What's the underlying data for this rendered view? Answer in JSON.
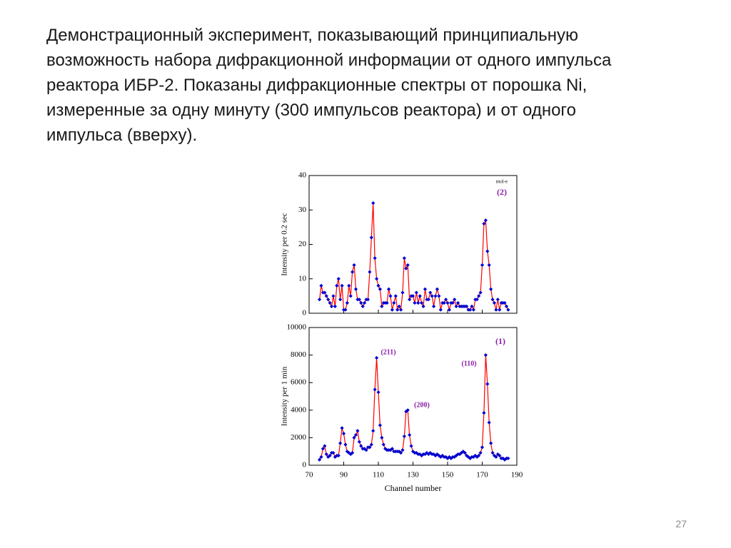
{
  "slide": {
    "text_lines": [
      "Демонстрационный эксперимент, показывающий принципиальную",
      "возможность набора дифракционной информации от одного импульса",
      "реактора ИБР-2. Показаны дифракционные спектры от порошка Ni,",
      "измеренные за одну минуту (300 импульсов реактора) и от одного",
      "импульса (вверху)."
    ],
    "page_number": "27"
  },
  "chart_data": [
    {
      "type": "line",
      "ylabel": "Intensity per 0.2 sec",
      "annotations": [
        "mol-e",
        "(2)"
      ],
      "xlim": [
        70,
        190
      ],
      "ylim": [
        0,
        40
      ],
      "yticks": [
        0,
        10,
        20,
        30,
        40
      ],
      "color": "#ff0000",
      "marker_color": "#0000d0",
      "x": [
        76,
        77,
        78,
        79,
        80,
        81,
        82,
        83,
        84,
        85,
        86,
        87,
        88,
        89,
        90,
        91,
        92,
        93,
        94,
        95,
        96,
        97,
        98,
        99,
        100,
        101,
        102,
        103,
        104,
        105,
        106,
        107,
        108,
        109,
        110,
        111,
        112,
        113,
        114,
        115,
        116,
        117,
        118,
        119,
        120,
        121,
        122,
        123,
        124,
        125,
        126,
        127,
        128,
        129,
        130,
        131,
        132,
        133,
        134,
        135,
        136,
        137,
        138,
        139,
        140,
        141,
        142,
        143,
        144,
        145,
        146,
        147,
        148,
        149,
        150,
        151,
        152,
        153,
        154,
        155,
        156,
        157,
        158,
        159,
        160,
        161,
        162,
        163,
        164,
        165,
        166,
        167,
        168,
        169,
        170,
        171,
        172,
        173,
        174,
        175,
        176,
        177,
        178,
        179,
        180,
        181,
        182,
        183,
        184,
        185
      ],
      "values": [
        4,
        8,
        6,
        6,
        5,
        4,
        3,
        2,
        5,
        2,
        8,
        10,
        4,
        8,
        1,
        1,
        3,
        8,
        5,
        12,
        14,
        7,
        4,
        4,
        3,
        2,
        3,
        4,
        4,
        12,
        22,
        32,
        16,
        10,
        8,
        7,
        2,
        3,
        3,
        3,
        7,
        5,
        1,
        3,
        5,
        1,
        2,
        1,
        6,
        16,
        13,
        14,
        4,
        5,
        5,
        3,
        6,
        3,
        5,
        3,
        2,
        7,
        4,
        4,
        6,
        5,
        2,
        5,
        7,
        5,
        1,
        3,
        3,
        4,
        3,
        1,
        3,
        3,
        4,
        2,
        3,
        2,
        2,
        2,
        2,
        2,
        1,
        1,
        2,
        1,
        4,
        4,
        5,
        6,
        14,
        26,
        27,
        18,
        14,
        7,
        4,
        3,
        1,
        4,
        1,
        3,
        3,
        3,
        2,
        1
      ]
    },
    {
      "type": "line",
      "ylabel": "Intensity per 1 min",
      "xlabel": "Channel number",
      "annotations": [
        "(1)",
        "(211)",
        "(110)",
        "(200)"
      ],
      "xlim": [
        70,
        190
      ],
      "xticks": [
        70,
        90,
        110,
        130,
        150,
        170,
        190
      ],
      "ylim": [
        0,
        10000
      ],
      "yticks": [
        0,
        2000,
        4000,
        6000,
        8000,
        10000
      ],
      "color": "#ff0000",
      "marker_color": "#0000d0",
      "x": [
        76,
        77,
        78,
        79,
        80,
        81,
        82,
        83,
        84,
        85,
        86,
        87,
        88,
        89,
        90,
        91,
        92,
        93,
        94,
        95,
        96,
        97,
        98,
        99,
        100,
        101,
        102,
        103,
        104,
        105,
        106,
        107,
        108,
        109,
        110,
        111,
        112,
        113,
        114,
        115,
        116,
        117,
        118,
        119,
        120,
        121,
        122,
        123,
        124,
        125,
        126,
        127,
        128,
        129,
        130,
        131,
        132,
        133,
        134,
        135,
        136,
        137,
        138,
        139,
        140,
        141,
        142,
        143,
        144,
        145,
        146,
        147,
        148,
        149,
        150,
        151,
        152,
        153,
        154,
        155,
        156,
        157,
        158,
        159,
        160,
        161,
        162,
        163,
        164,
        165,
        166,
        167,
        168,
        169,
        170,
        171,
        172,
        173,
        174,
        175,
        176,
        177,
        178,
        179,
        180,
        181,
        182,
        183,
        184,
        185
      ],
      "values": [
        400,
        600,
        1200,
        1400,
        800,
        600,
        700,
        900,
        900,
        600,
        700,
        700,
        1600,
        2700,
        2300,
        1500,
        1000,
        900,
        800,
        900,
        2000,
        2200,
        2500,
        1700,
        1400,
        1200,
        1200,
        1100,
        1300,
        1300,
        1500,
        2500,
        5500,
        7800,
        5300,
        2900,
        2000,
        1500,
        1200,
        1100,
        1100,
        1100,
        1200,
        1000,
        1000,
        1000,
        1000,
        900,
        1100,
        2100,
        3900,
        4000,
        2200,
        1400,
        1000,
        900,
        900,
        800,
        800,
        700,
        800,
        800,
        900,
        800,
        900,
        800,
        800,
        700,
        800,
        700,
        600,
        700,
        600,
        600,
        500,
        600,
        500,
        600,
        600,
        700,
        800,
        800,
        900,
        1000,
        900,
        700,
        600,
        500,
        600,
        600,
        700,
        600,
        700,
        900,
        1300,
        3800,
        8000,
        5900,
        3100,
        1600,
        900,
        700,
        600,
        800,
        700,
        500,
        500,
        400,
        500,
        500
      ]
    }
  ]
}
